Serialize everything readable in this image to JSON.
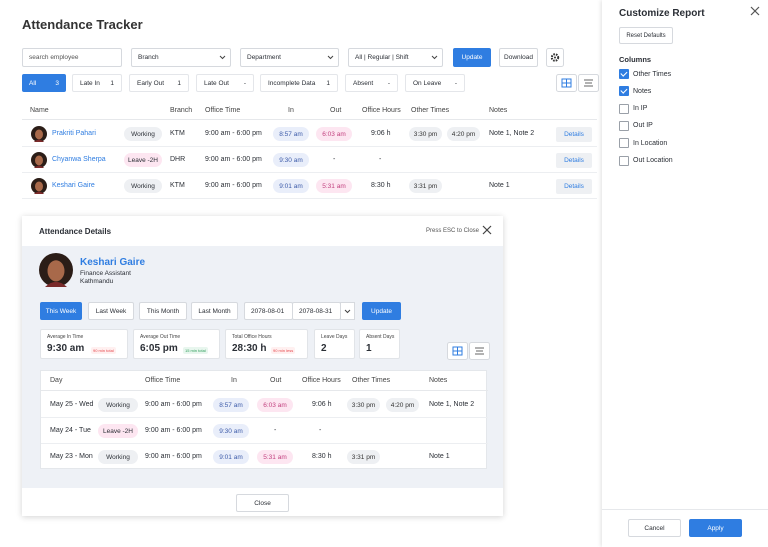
{
  "header": {
    "title": "Attendance Tracker"
  },
  "filters": {
    "search": "search employee",
    "branch": "Branch",
    "department": "Department",
    "shift": "All | Regular | Shift",
    "update": "Update",
    "download": "Download"
  },
  "tabs": [
    {
      "label": "All",
      "count": 3,
      "active": true
    },
    {
      "label": "Late In",
      "count": 1
    },
    {
      "label": "Early Out",
      "count": 1
    },
    {
      "label": "Late Out",
      "count": "-"
    },
    {
      "label": "Incomplete Data",
      "count": 1
    },
    {
      "label": "Absent",
      "count": "-"
    },
    {
      "label": "On Leave",
      "count": "-"
    }
  ],
  "table": {
    "columns": [
      "Name",
      "Branch",
      "Office Time",
      "In",
      "Out",
      "Office Hours",
      "Other Times",
      "Notes"
    ],
    "rows": [
      {
        "name": "Prakriti Pahari",
        "status": "Working",
        "status_color": "#eef0f3",
        "branch": "KTM",
        "office_time": "9:00 am - 6:00 pm",
        "in": "8:57 am",
        "out": "6:03 am",
        "office_hours": "9:06 h",
        "other_times": [
          "3:30 pm",
          "4:20 pm"
        ],
        "notes": "Note 1, Note 2",
        "action": "Details"
      },
      {
        "name": "Chyanwa Sherpa",
        "status": "Leave -2H",
        "status_color": "#fde6f1",
        "branch": "DHR",
        "office_time": "9:00 am - 6:00 pm",
        "in": "9:30 am",
        "out": "-",
        "office_hours": "-",
        "other_times": [],
        "action": "Details"
      },
      {
        "name": "Keshari Gaire",
        "status": "Working",
        "status_color": "#eef0f3",
        "branch": "KTM",
        "office_time": "9:00 am - 6:00 pm",
        "in": "9:01 am",
        "out": "5:31 am",
        "office_hours": "8:30 h",
        "other_times": [
          "3:31 pm"
        ],
        "notes": "Note 1",
        "action": "Details"
      }
    ]
  },
  "modal": {
    "title": "Attendance Details",
    "hint": "Press ESC to Close",
    "profile": {
      "name": "Keshari Gaire",
      "role": "Finance Assistant",
      "location": "Kathmandu"
    },
    "periods": [
      {
        "label": "This Week",
        "active": true
      },
      {
        "label": "Last Week"
      },
      {
        "label": "This Month"
      },
      {
        "label": "Last Month"
      }
    ],
    "date_from": "2078-08-01",
    "date_to": "2078-08-31",
    "update": "Update",
    "stats": [
      {
        "label": "Average In Time",
        "value": "9:30 am",
        "badge": "90 min total",
        "badge_color": "#e5484d"
      },
      {
        "label": "Average Out Time",
        "value": "6:05 pm",
        "badge": "15 min total",
        "badge_color": "#2e9e5b"
      },
      {
        "label": "Total Office Hours",
        "value": "28:30 h",
        "badge": "90 min less",
        "badge_color": "#e5484d"
      },
      {
        "label": "Leave Days",
        "value": "2"
      },
      {
        "label": "Absent Days",
        "value": "1"
      }
    ],
    "table": {
      "columns": [
        "Day",
        "Office Time",
        "In",
        "Out",
        "Office Hours",
        "Other Times",
        "Notes"
      ],
      "rows": [
        {
          "day": "May 25 - Wed",
          "status": "Working",
          "status_color": "#eef0f3",
          "office_time": "9:00 am - 6:00 pm",
          "in": "8:57 am",
          "out": "6:03 am",
          "office_hours": "9:06 h",
          "other_times": [
            "3:30 pm",
            "4:20 pm"
          ],
          "notes": "Note 1, Note 2"
        },
        {
          "day": "May 24 - Tue",
          "status": "Leave -2H",
          "status_color": "#fde6f1",
          "office_time": "9:00 am - 6:00 pm",
          "in": "9:30 am",
          "out": "-",
          "office_hours": "-",
          "other_times": []
        },
        {
          "day": "May 23 - Mon",
          "status": "Working",
          "status_color": "#eef0f3",
          "office_time": "9:00 am - 6:00 pm",
          "in": "9:01 am",
          "out": "5:31 am",
          "office_hours": "8:30 h",
          "other_times": [
            "3:31 pm"
          ],
          "notes": "Note 1"
        }
      ]
    },
    "close": "Close"
  },
  "panel": {
    "title": "Customize Report",
    "reset": "Reset Defaults",
    "section": "Columns",
    "options": [
      {
        "label": "Other Times",
        "checked": true
      },
      {
        "label": "Notes",
        "checked": true
      },
      {
        "label": "In IP",
        "checked": false
      },
      {
        "label": "Out IP",
        "checked": false
      },
      {
        "label": "In Location",
        "checked": false
      },
      {
        "label": "Out Location",
        "checked": false
      }
    ],
    "cancel": "Cancel",
    "apply": "Apply"
  }
}
